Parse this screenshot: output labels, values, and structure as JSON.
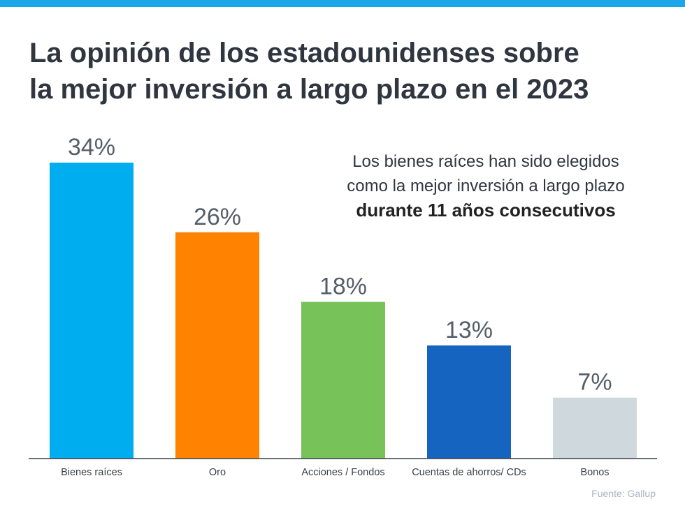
{
  "title": {
    "line1": "La opinión de los estadounidenses sobre",
    "line2": "la mejor inversión a largo plazo en el 2023"
  },
  "callout": {
    "line1": "Los bienes raíces han sido elegidos",
    "line2": "como la mejor inversión a largo plazo",
    "line3": "durante 11 años consecutivos"
  },
  "source": "Fuente: Gallup",
  "colors": {
    "top_stripe": "#1aa6e8",
    "axis": "#3a3f44",
    "value_label": "#555f69",
    "category_label": "#3a3f44"
  },
  "chart_data": {
    "type": "bar",
    "categories": [
      "Bienes raíces",
      "Oro",
      "Acciones / Fondos",
      "Cuentas de ahorros/ CDs",
      "Bonos"
    ],
    "values": [
      34,
      26,
      18,
      13,
      7
    ],
    "value_labels": [
      "34%",
      "26%",
      "18%",
      "13%",
      "7%"
    ],
    "colors": [
      "#00adef",
      "#ff8200",
      "#77c35a",
      "#1565c0",
      "#cfd8dc"
    ],
    "unit": "%",
    "ylim": [
      0,
      34
    ],
    "grid": false,
    "legend": "none"
  }
}
